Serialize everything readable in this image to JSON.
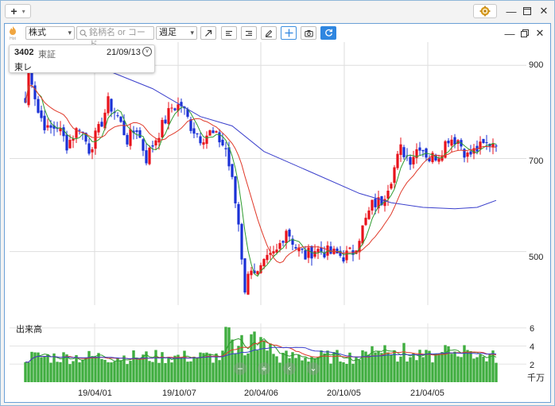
{
  "titlebar": {
    "add_label": "+"
  },
  "toolbar": {
    "market_select": "株式",
    "search_placeholder": "銘柄名 or コード",
    "period_select": "週足"
  },
  "info_box": {
    "code": "3402",
    "exchange": "東証",
    "date": "21/09/13",
    "name": "東レ"
  },
  "volume_panel": {
    "title": "出来高",
    "unit": "千万"
  },
  "chart_data": [
    {
      "type": "candlestick",
      "yticks": [
        500,
        700,
        900
      ],
      "ylim": [
        385,
        950
      ],
      "xticks": [
        "19/04/01",
        "19/10/07",
        "20/04/06",
        "20/10/05",
        "21/04/05"
      ],
      "grid": true,
      "up_color": "#e8121b",
      "down_color": "#1a31d6",
      "ma_colors": [
        "#2e9b2e",
        "#e03a2a",
        "#3a3fcc"
      ],
      "key_levels": [
        {
          "x": 0,
          "y": 820
        },
        {
          "x": 1,
          "y": 890
        },
        {
          "x": 2,
          "y": 870
        },
        {
          "x": 4,
          "y": 800
        },
        {
          "x": 7,
          "y": 760
        },
        {
          "x": 10,
          "y": 770
        },
        {
          "x": 13,
          "y": 730
        },
        {
          "x": 17,
          "y": 770
        },
        {
          "x": 20,
          "y": 720
        },
        {
          "x": 23,
          "y": 760
        },
        {
          "x": 26,
          "y": 820
        },
        {
          "x": 29,
          "y": 790
        },
        {
          "x": 32,
          "y": 740
        },
        {
          "x": 35,
          "y": 765
        },
        {
          "x": 38,
          "y": 700
        },
        {
          "x": 40,
          "y": 730
        },
        {
          "x": 43,
          "y": 770
        },
        {
          "x": 46,
          "y": 810
        },
        {
          "x": 49,
          "y": 815
        },
        {
          "x": 52,
          "y": 770
        },
        {
          "x": 55,
          "y": 745
        },
        {
          "x": 58,
          "y": 755
        },
        {
          "x": 61,
          "y": 740
        },
        {
          "x": 63,
          "y": 720
        },
        {
          "x": 65,
          "y": 650
        },
        {
          "x": 67,
          "y": 560
        },
        {
          "x": 69,
          "y": 420
        },
        {
          "x": 71,
          "y": 470
        },
        {
          "x": 73,
          "y": 450
        },
        {
          "x": 76,
          "y": 480
        },
        {
          "x": 79,
          "y": 500
        },
        {
          "x": 82,
          "y": 550
        },
        {
          "x": 85,
          "y": 510
        },
        {
          "x": 88,
          "y": 490
        },
        {
          "x": 91,
          "y": 505
        },
        {
          "x": 94,
          "y": 500
        },
        {
          "x": 97,
          "y": 495
        },
        {
          "x": 100,
          "y": 490
        },
        {
          "x": 103,
          "y": 500
        },
        {
          "x": 106,
          "y": 550
        },
        {
          "x": 109,
          "y": 600
        },
        {
          "x": 112,
          "y": 610
        },
        {
          "x": 115,
          "y": 660
        },
        {
          "x": 118,
          "y": 720
        },
        {
          "x": 121,
          "y": 700
        },
        {
          "x": 124,
          "y": 730
        },
        {
          "x": 127,
          "y": 700
        },
        {
          "x": 130,
          "y": 710
        },
        {
          "x": 133,
          "y": 745
        },
        {
          "x": 136,
          "y": 740
        },
        {
          "x": 139,
          "y": 705
        },
        {
          "x": 142,
          "y": 720
        },
        {
          "x": 145,
          "y": 730
        },
        {
          "x": 148,
          "y": 740
        }
      ],
      "ma_long": [
        {
          "x": 0,
          "y": 920
        },
        {
          "x": 20,
          "y": 905
        },
        {
          "x": 40,
          "y": 850
        },
        {
          "x": 55,
          "y": 790
        },
        {
          "x": 65,
          "y": 770
        },
        {
          "x": 75,
          "y": 715
        },
        {
          "x": 90,
          "y": 670
        },
        {
          "x": 105,
          "y": 625
        },
        {
          "x": 115,
          "y": 605
        },
        {
          "x": 125,
          "y": 595
        },
        {
          "x": 135,
          "y": 592
        },
        {
          "x": 142,
          "y": 595
        },
        {
          "x": 148,
          "y": 610
        }
      ]
    },
    {
      "type": "bar",
      "yticks": [
        2.0,
        4.0,
        6.0
      ],
      "ylim": [
        0,
        6.5
      ],
      "color": "#3fad3f"
    }
  ]
}
